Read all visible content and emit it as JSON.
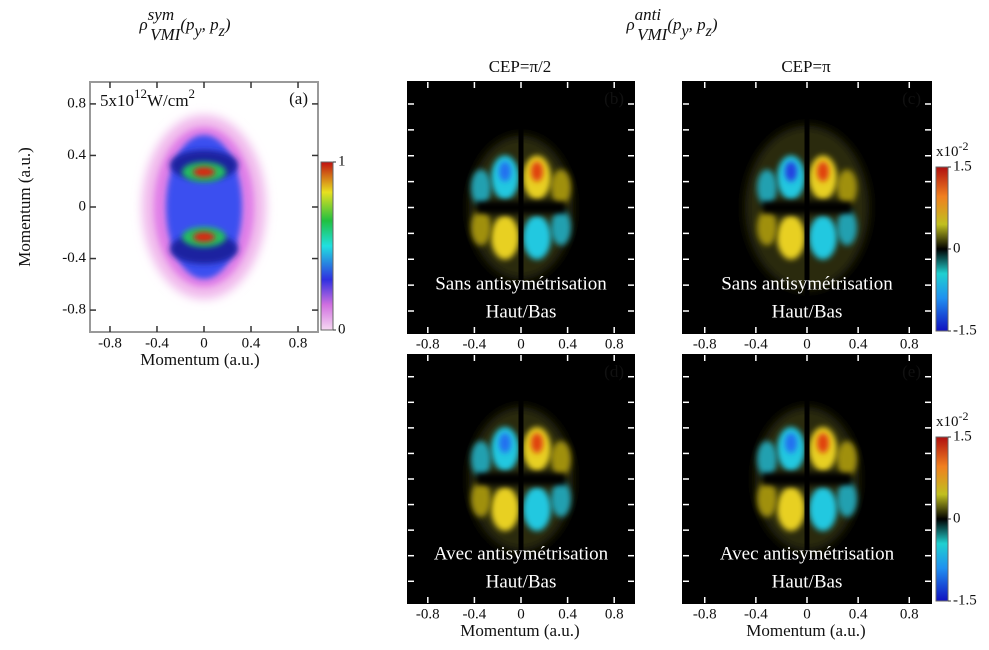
{
  "titles": [
    {
      "base": "ρ",
      "sup": "sym",
      "sub": "VMI",
      "args": [
        "(p",
        "y",
        ", p",
        "z",
        ")"
      ]
    },
    {
      "base": "ρ",
      "sup": "anti",
      "sub": "VMI",
      "args": [
        "(p",
        "y",
        ", p",
        "z",
        ")"
      ]
    }
  ],
  "columns": [
    "CEP=π/2",
    "CEP=π"
  ],
  "intensity": [
    "5x10",
    "12",
    "W/cm",
    "2"
  ],
  "panels": [
    {
      "label": "(a)",
      "xticks": [
        -0.8,
        -0.4,
        0,
        0.4,
        0.8
      ],
      "yticks": [
        0.8,
        0.4,
        0,
        -0.4,
        -0.8
      ]
    },
    {
      "label": "(b)",
      "xticks": [
        -0.8,
        -0.4,
        0,
        0.4,
        0.8
      ]
    },
    {
      "label": "(c)",
      "xticks": [
        -0.8,
        -0.4,
        0,
        0.4,
        0.8
      ]
    },
    {
      "label": "(d)",
      "xticks": [
        -0.8,
        -0.4,
        0,
        0.4,
        0.8
      ]
    },
    {
      "label": "(e)",
      "xticks": [
        -0.8,
        -0.4,
        0,
        0.4,
        0.8
      ]
    }
  ],
  "rows": [
    {
      "text": "Sans antisymétrisation",
      "text2": "Haut/Bas"
    },
    {
      "text": "Avec antisymétrisation",
      "text2": "Haut/Bas"
    }
  ],
  "xlabel": "Momentum (a.u.)",
  "ylabel": "Momentum (a.u.)",
  "colorbars": [
    {
      "ticks": [
        1,
        0
      ]
    },
    {
      "exponent": [
        "x10",
        "-2"
      ],
      "ticks": [
        1.5,
        0,
        -1.5
      ]
    },
    {
      "exponent": [
        "x10",
        "-2"
      ],
      "ticks": [
        1.5,
        0,
        -1.5
      ]
    }
  ]
}
